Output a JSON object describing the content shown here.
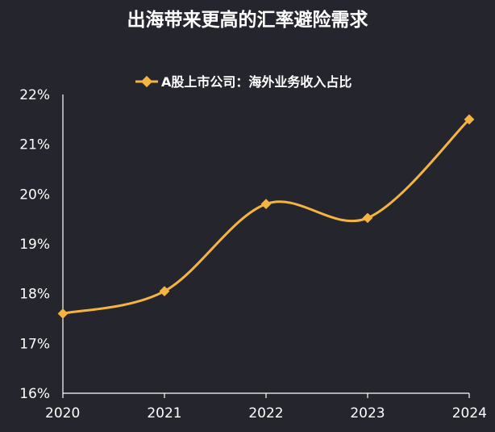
{
  "chart_data": {
    "type": "line",
    "title": "出海带来更高的汇率避险需求",
    "x": [
      "2020",
      "2021",
      "2022",
      "2023",
      "2024"
    ],
    "series": [
      {
        "name": "A股上市公司：海外业务收入占比",
        "values": [
          17.6,
          18.05,
          19.8,
          19.52,
          21.5
        ]
      }
    ],
    "ylim": [
      16,
      22
    ],
    "yticks": [
      "16%",
      "17%",
      "18%",
      "19%",
      "20%",
      "21%",
      "22%"
    ],
    "line_color": "#f5b342",
    "legend_position": "top",
    "grid": false,
    "smooth": true
  }
}
